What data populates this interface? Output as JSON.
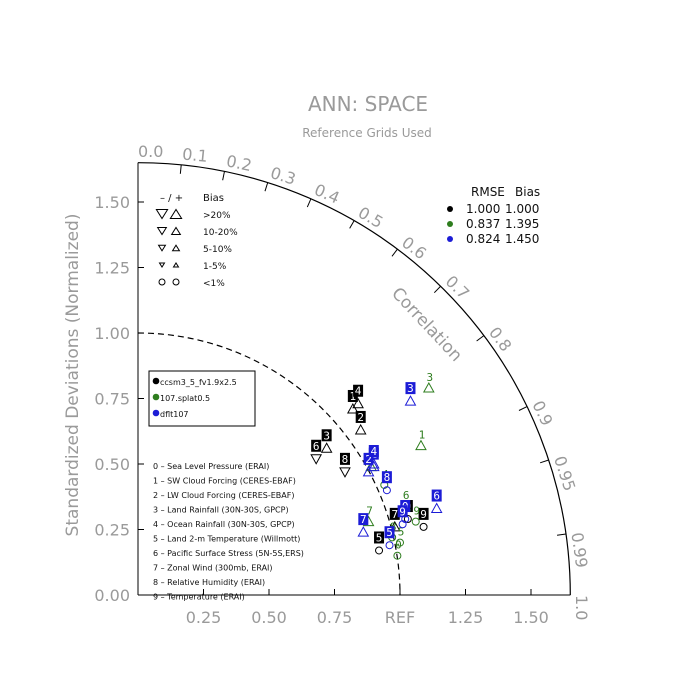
{
  "chart_data": {
    "type": "scatter",
    "subtype": "taylor-diagram",
    "title": "ANN: SPACE",
    "subtitle": "Reference Grids Used",
    "ylabel": "Standardized Deviations (Normalized)",
    "angular_label": "Correlation",
    "ref_label": "REF",
    "x_ticks": [
      {
        "value": 0.25,
        "label": "0.25"
      },
      {
        "value": 0.5,
        "label": "0.50"
      },
      {
        "value": 0.75,
        "label": "0.75"
      },
      {
        "value": 1.25,
        "label": "1.25"
      },
      {
        "value": 1.5,
        "label": "1.50"
      }
    ],
    "y_ticks": [
      {
        "value": 0,
        "label": "0.00"
      },
      {
        "value": 0.25,
        "label": "0.25"
      },
      {
        "value": 0.5,
        "label": "0.50"
      },
      {
        "value": 0.75,
        "label": "0.75"
      },
      {
        "value": 1.0,
        "label": "1.00"
      },
      {
        "value": 1.25,
        "label": "1.25"
      },
      {
        "value": 1.5,
        "label": "1.50"
      }
    ],
    "corr_ticks": [
      {
        "value": 0.0,
        "label": "0.0"
      },
      {
        "value": 0.1,
        "label": "0.1"
      },
      {
        "value": 0.2,
        "label": "0.2"
      },
      {
        "value": 0.3,
        "label": "0.3"
      },
      {
        "value": 0.4,
        "label": "0.4"
      },
      {
        "value": 0.5,
        "label": "0.5"
      },
      {
        "value": 0.6,
        "label": "0.6"
      },
      {
        "value": 0.7,
        "label": "0.7"
      },
      {
        "value": 0.8,
        "label": "0.8"
      },
      {
        "value": 0.9,
        "label": "0.9"
      },
      {
        "value": 0.95,
        "label": "0.95"
      },
      {
        "value": 0.99,
        "label": "0.99"
      },
      {
        "value": 1.0,
        "label": "1.0"
      }
    ],
    "rmse_bias_table": {
      "header_rmse": "RMSE",
      "header_bias": "Bias",
      "rows": [
        {
          "color": "#000000",
          "rmse": "1.000",
          "bias": "1.000"
        },
        {
          "color": "#2e7d1e",
          "rmse": "0.837",
          "bias": "1.395"
        },
        {
          "color": "#1c1cd6",
          "rmse": "0.824",
          "bias": "1.450"
        }
      ]
    },
    "bias_key": {
      "header_sym": "– / +",
      "header": "Bias",
      "rows": [
        {
          "label": ">20%",
          "size": 9
        },
        {
          "label": "10-20%",
          "size": 7
        },
        {
          "label": "5-10%",
          "size": 5.5
        },
        {
          "label": "1-5%",
          "size": 4
        },
        {
          "label": "<1%",
          "size": 3,
          "circle": true
        }
      ]
    },
    "series": [
      {
        "name": "ccsm3_5_fv1.9x2.5",
        "color": "#000000",
        "points": [
          {
            "id": "0",
            "x": 1.03,
            "y": 0.29,
            "marker": "circle"
          },
          {
            "id": "1",
            "x": 0.82,
            "y": 0.71,
            "marker": "tri-up"
          },
          {
            "id": "2",
            "x": 0.85,
            "y": 0.63,
            "marker": "tri-up"
          },
          {
            "id": "3",
            "x": 0.72,
            "y": 0.56,
            "marker": "tri-up"
          },
          {
            "id": "4",
            "x": 0.84,
            "y": 0.73,
            "marker": "tri-up"
          },
          {
            "id": "5",
            "x": 0.92,
            "y": 0.17,
            "marker": "circle"
          },
          {
            "id": "6",
            "x": 0.68,
            "y": 0.52,
            "marker": "tri-down"
          },
          {
            "id": "7",
            "x": 0.98,
            "y": 0.26,
            "marker": "tri-up"
          },
          {
            "id": "8",
            "x": 0.79,
            "y": 0.47,
            "marker": "tri-down"
          },
          {
            "id": "9",
            "x": 1.09,
            "y": 0.26,
            "marker": "circle"
          }
        ]
      },
      {
        "name": "107.splat0.5",
        "color": "#2e7d1e",
        "points": [
          {
            "id": "0",
            "x": 0.99,
            "y": 0.15,
            "marker": "circle"
          },
          {
            "id": "1",
            "x": 1.08,
            "y": 0.57,
            "marker": "tri-up"
          },
          {
            "id": "2",
            "x": 0.89,
            "y": 0.49,
            "marker": "tri-up"
          },
          {
            "id": "3",
            "x": 1.11,
            "y": 0.79,
            "marker": "tri-up"
          },
          {
            "id": "4",
            "x": 0.94,
            "y": 0.42,
            "marker": "circle"
          },
          {
            "id": "5",
            "x": 1.0,
            "y": 0.2,
            "marker": "circle"
          },
          {
            "id": "6",
            "x": 1.02,
            "y": 0.34,
            "marker": "tri-up"
          },
          {
            "id": "7",
            "x": 0.88,
            "y": 0.28,
            "marker": "tri-up"
          },
          {
            "id": "8",
            "x": 0.97,
            "y": 0.22,
            "marker": "circle"
          },
          {
            "id": "9",
            "x": 1.06,
            "y": 0.28,
            "marker": "circle"
          }
        ]
      },
      {
        "name": "dflt107",
        "color": "#1c1cd6",
        "points": [
          {
            "id": "0",
            "x": 1.02,
            "y": 0.29,
            "marker": "circle"
          },
          {
            "id": "1",
            "x": 0.9,
            "y": 0.49,
            "marker": "tri-up"
          },
          {
            "id": "2",
            "x": 0.88,
            "y": 0.47,
            "marker": "tri-up"
          },
          {
            "id": "3",
            "x": 1.04,
            "y": 0.74,
            "marker": "tri-up"
          },
          {
            "id": "4",
            "x": 0.9,
            "y": 0.5,
            "marker": "tri-up"
          },
          {
            "id": "5",
            "x": 0.96,
            "y": 0.19,
            "marker": "circle"
          },
          {
            "id": "6",
            "x": 1.14,
            "y": 0.33,
            "marker": "tri-up"
          },
          {
            "id": "7",
            "x": 0.86,
            "y": 0.24,
            "marker": "tri-up"
          },
          {
            "id": "8",
            "x": 0.95,
            "y": 0.4,
            "marker": "circle"
          },
          {
            "id": "9",
            "x": 1.01,
            "y": 0.27,
            "marker": "circle"
          }
        ]
      }
    ],
    "variables": [
      "0 – Sea Level Pressure (ERAI)",
      "1 – SW Cloud Forcing (CERES-EBAF)",
      "2 – LW Cloud Forcing (CERES-EBAF)",
      "3 – Land Rainfall (30N-30S, GPCP)",
      "4 – Ocean Rainfall (30N-30S, GPCP)",
      "5 – Land 2-m Temperature (Willmott)",
      "6 – Pacific Surface Stress (5N-5S,ERS)",
      "7 – Zonal Wind (300mb, ERAI)",
      "8 – Relative Humidity (ERAI)",
      "9 – Temperature (ERAI)"
    ]
  }
}
